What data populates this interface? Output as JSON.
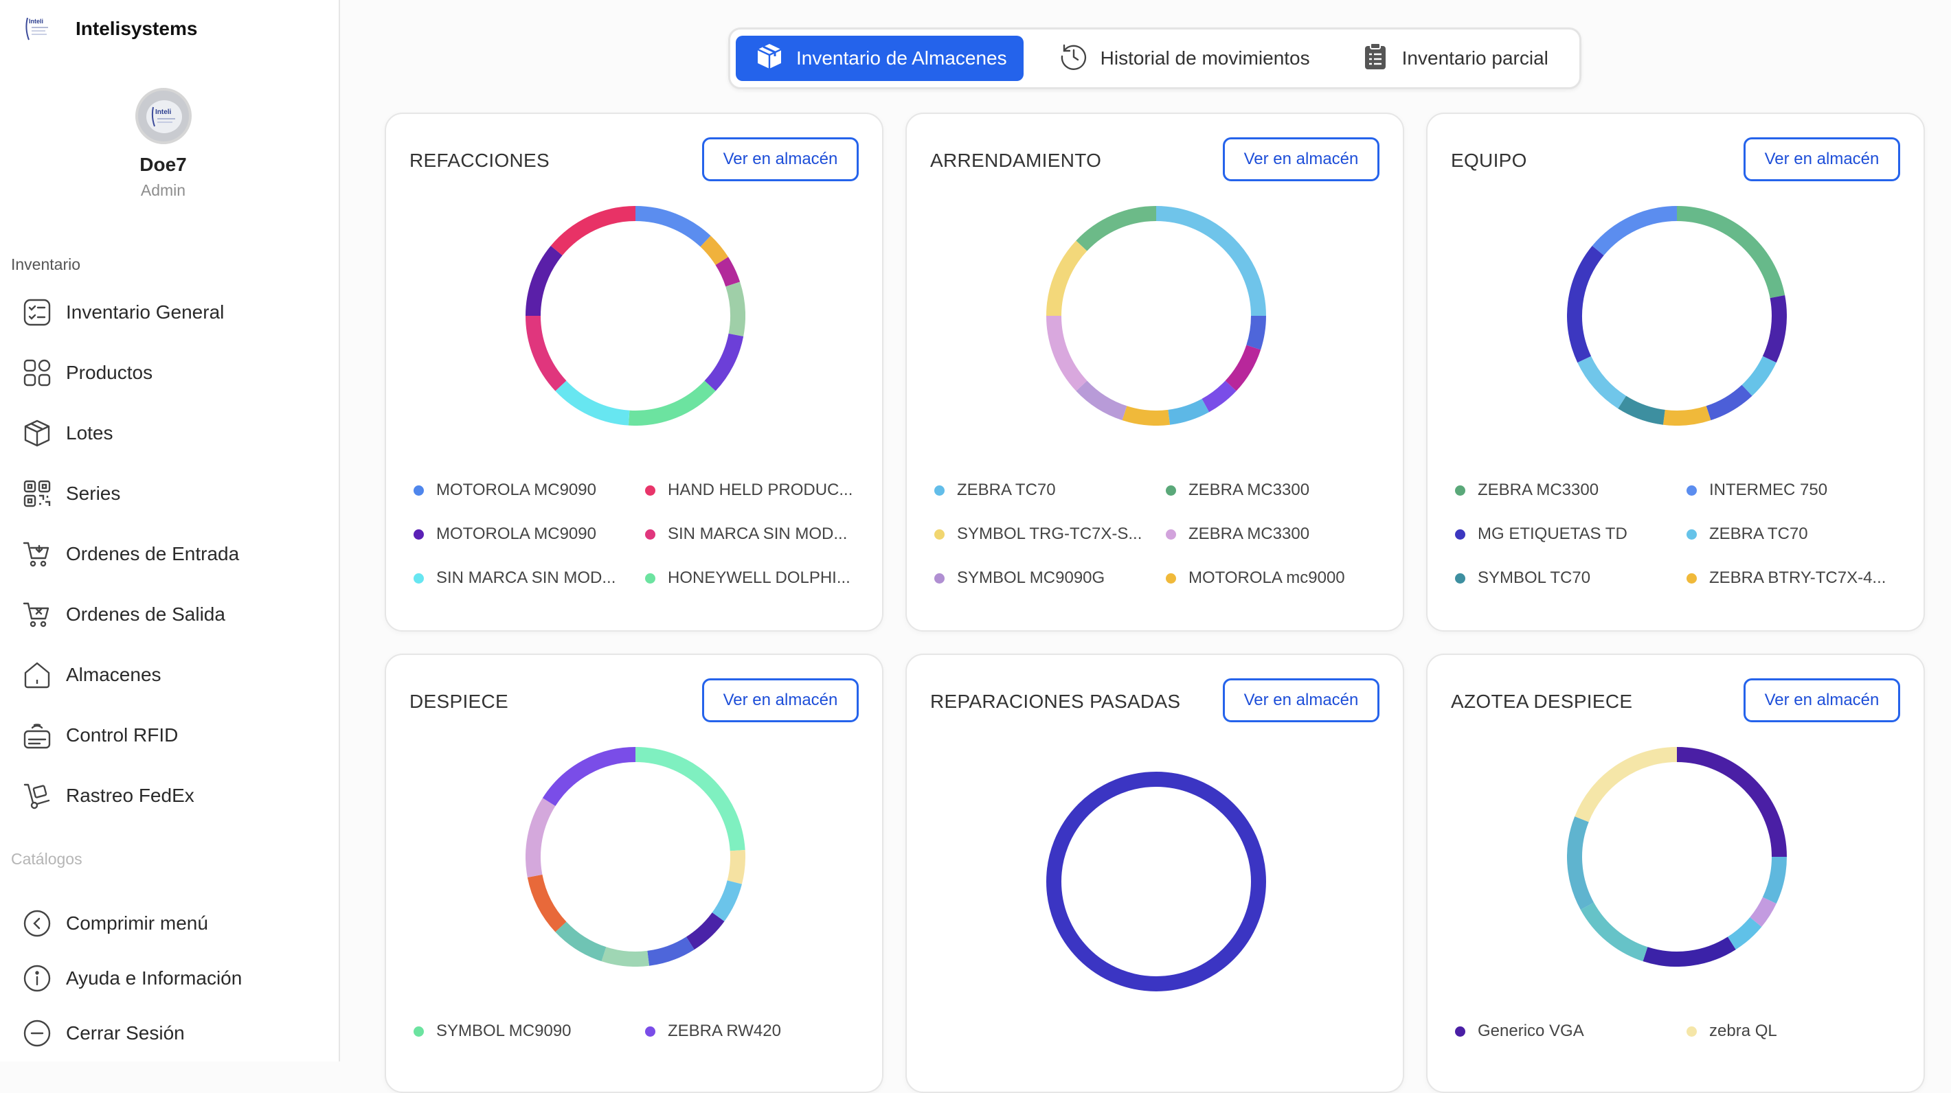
{
  "brand": {
    "name": "Intelisystems",
    "logo_text": "Inteli"
  },
  "profile": {
    "name": "Doe7",
    "role": "Admin"
  },
  "sidebar": {
    "section_inventory": "Inventario",
    "items": [
      {
        "label": "Inventario General",
        "icon": "checklist-icon"
      },
      {
        "label": "Productos",
        "icon": "grid-icon"
      },
      {
        "label": "Lotes",
        "icon": "box-icon"
      },
      {
        "label": "Series",
        "icon": "qr-icon"
      },
      {
        "label": "Ordenes de Entrada",
        "icon": "cart-in-icon"
      },
      {
        "label": "Ordenes de Salida",
        "icon": "cart-out-icon"
      },
      {
        "label": "Almacenes",
        "icon": "home-icon"
      },
      {
        "label": "Control RFID",
        "icon": "rfid-icon"
      },
      {
        "label": "Rastreo FedEx",
        "icon": "dolly-icon"
      }
    ],
    "section_catalogs": "Catálogos",
    "footer": [
      {
        "label": "Comprimir menú",
        "icon": "chevron-left-icon"
      },
      {
        "label": "Ayuda e Información",
        "icon": "info-icon"
      },
      {
        "label": "Cerrar Sesión",
        "icon": "minus-circle-icon"
      }
    ]
  },
  "tabs": [
    {
      "label": "Inventario de Almacenes",
      "icon": "package-icon",
      "active": true
    },
    {
      "label": "Historial de movimientos",
      "icon": "history-icon",
      "active": false
    },
    {
      "label": "Inventario parcial",
      "icon": "clipboard-icon",
      "active": false
    }
  ],
  "button_label": "Ver en almacén",
  "chart_data": [
    {
      "type": "pie",
      "title": "REFACCIONES",
      "segments": [
        {
          "color": "#5b8def",
          "value": 12
        },
        {
          "color": "#f0b23c",
          "value": 4
        },
        {
          "color": "#b2299a",
          "value": 4
        },
        {
          "color": "#9fcfa8",
          "value": 8
        },
        {
          "color": "#6c3fd8",
          "value": 9
        },
        {
          "color": "#6ce3a0",
          "value": 14
        },
        {
          "color": "#67e6f1",
          "value": 12
        },
        {
          "color": "#e0367d",
          "value": 12
        },
        {
          "color": "#5a1fa8",
          "value": 11
        },
        {
          "color": "#e83266",
          "value": 14
        }
      ],
      "legend": [
        {
          "label": "MOTOROLA MC9090",
          "color": "#4f86ec"
        },
        {
          "label": "HAND HELD PRODUC...",
          "color": "#e8356a"
        },
        {
          "label": "MOTOROLA MC9090",
          "color": "#5b21b6"
        },
        {
          "label": "SIN MARCA SIN MOD...",
          "color": "#e0367d"
        },
        {
          "label": "SIN MARCA SIN MOD...",
          "color": "#67e6f1"
        },
        {
          "label": "HONEYWELL DOLPHI...",
          "color": "#6ce3a0"
        }
      ]
    },
    {
      "type": "pie",
      "title": "ARRENDAMIENTO",
      "segments": [
        {
          "color": "#6fc4ea",
          "value": 25
        },
        {
          "color": "#4e66da",
          "value": 5
        },
        {
          "color": "#b8279b",
          "value": 7
        },
        {
          "color": "#7a4de8",
          "value": 5
        },
        {
          "color": "#5db8e6",
          "value": 6
        },
        {
          "color": "#f0b93a",
          "value": 7
        },
        {
          "color": "#b89bd8",
          "value": 8
        },
        {
          "color": "#d9a8de",
          "value": 12
        },
        {
          "color": "#f3d87a",
          "value": 12
        },
        {
          "color": "#6cba88",
          "value": 13
        }
      ],
      "legend": [
        {
          "label": "ZEBRA TC70",
          "color": "#62bde9"
        },
        {
          "label": "ZEBRA MC3300",
          "color": "#5aa879"
        },
        {
          "label": "SYMBOL TRG-TC7X-S...",
          "color": "#f1d670"
        },
        {
          "label": "ZEBRA MC3300",
          "color": "#d2a3dc"
        },
        {
          "label": "SYMBOL MC9090G",
          "color": "#b08fd2"
        },
        {
          "label": "MOTOROLA mc9000",
          "color": "#f0b93a"
        }
      ]
    },
    {
      "type": "pie",
      "title": "EQUIPO",
      "segments": [
        {
          "color": "#67b98a",
          "value": 22
        },
        {
          "color": "#4a23a8",
          "value": 10
        },
        {
          "color": "#66c3e9",
          "value": 6
        },
        {
          "color": "#4c5fd8",
          "value": 7
        },
        {
          "color": "#f0b93a",
          "value": 7
        },
        {
          "color": "#3d8fa0",
          "value": 7
        },
        {
          "color": "#70c6ea",
          "value": 9
        },
        {
          "color": "#3c37c0",
          "value": 18
        },
        {
          "color": "#5b8def",
          "value": 14
        }
      ],
      "legend": [
        {
          "label": "ZEBRA MC3300",
          "color": "#5aa879"
        },
        {
          "label": "INTERMEC 750",
          "color": "#5b8def"
        },
        {
          "label": "MG ETIQUETAS TD",
          "color": "#3c37c0"
        },
        {
          "label": "ZEBRA TC70",
          "color": "#66c3e9"
        },
        {
          "label": "SYMBOL TC70",
          "color": "#3d8fa0"
        },
        {
          "label": "ZEBRA BTRY-TC7X-4...",
          "color": "#f0b93a"
        }
      ]
    },
    {
      "type": "pie",
      "title": "DESPIECE",
      "segments": [
        {
          "color": "#7ff0c0",
          "value": 24
        },
        {
          "color": "#f5e2a2",
          "value": 5
        },
        {
          "color": "#6bc4ea",
          "value": 6
        },
        {
          "color": "#4a23a8",
          "value": 6
        },
        {
          "color": "#4e66da",
          "value": 7
        },
        {
          "color": "#9fd6b4",
          "value": 7
        },
        {
          "color": "#6fc4b4",
          "value": 8
        },
        {
          "color": "#e8693a",
          "value": 9
        },
        {
          "color": "#d4a8dc",
          "value": 12
        },
        {
          "color": "#7a4de8",
          "value": 16
        }
      ],
      "legend": [
        {
          "label": "SYMBOL MC9090",
          "color": "#6ce3a0"
        },
        {
          "label": "ZEBRA RW420",
          "color": "#7a4de8"
        }
      ]
    },
    {
      "type": "pie",
      "title": "REPARACIONES PASADAS",
      "segments": [
        {
          "color": "#3b35c3",
          "value": 100
        }
      ],
      "legend": []
    },
    {
      "type": "pie",
      "title": "AZOTEA DESPIECE",
      "segments": [
        {
          "color": "#4a1fa5",
          "value": 25
        },
        {
          "color": "#5fb8de",
          "value": 7
        },
        {
          "color": "#c39be0",
          "value": 4
        },
        {
          "color": "#60c1e8",
          "value": 5
        },
        {
          "color": "#3b22a8",
          "value": 14
        },
        {
          "color": "#66c3c8",
          "value": 12
        },
        {
          "color": "#5fb4cf",
          "value": 14
        },
        {
          "color": "#f5e6a8",
          "value": 19
        }
      ],
      "legend": [
        {
          "label": "Generico VGA",
          "color": "#4a1fa5"
        },
        {
          "label": "zebra QL",
          "color": "#f5e6a8"
        }
      ]
    }
  ]
}
